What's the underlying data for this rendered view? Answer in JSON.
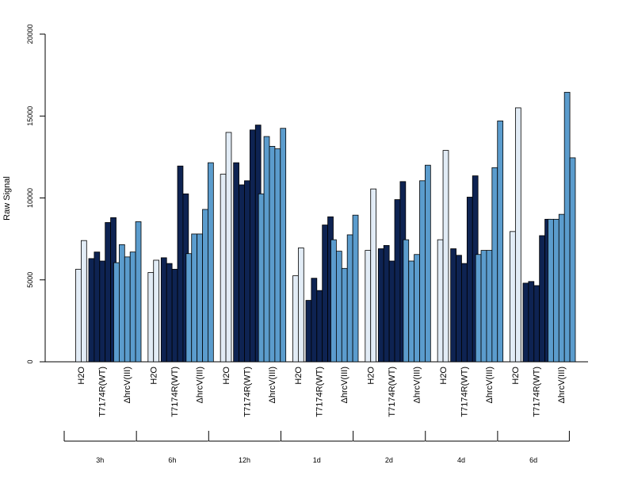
{
  "chart_data": {
    "type": "bar",
    "ylabel": "Raw Signal",
    "ylim": [
      0,
      20000
    ],
    "yticks": [
      0,
      5000,
      10000,
      15000,
      20000
    ],
    "group_labels": [
      "H2O",
      "T7174R(WT)",
      "ΔhrcV(III)"
    ],
    "colors": {
      "H2O": "#e2ecf6",
      "T7174R(WT)": "#0e2352",
      "ΔhrcV(III)": "#5b9ccd"
    },
    "timepoints": [
      {
        "label": "3h",
        "H2O": [
          5650,
          7400
        ],
        "T7174R(WT)": [
          6300,
          6700,
          6150,
          8500,
          8800
        ],
        "ΔhrcV(III)": [
          6050,
          7150,
          6400,
          6700,
          8550
        ]
      },
      {
        "label": "6h",
        "H2O": [
          5450,
          6200
        ],
        "T7174R(WT)": [
          6350,
          6000,
          5650,
          11950,
          10250
        ],
        "ΔhrcV(III)": [
          6600,
          7800,
          7800,
          9300,
          12150
        ]
      },
      {
        "label": "12h",
        "H2O": [
          11450,
          14000
        ],
        "T7174R(WT)": [
          12150,
          10800,
          11050,
          14150,
          14450
        ],
        "ΔhrcV(III)": [
          10250,
          13750,
          13150,
          13000,
          14250
        ]
      },
      {
        "label": "1d",
        "H2O": [
          5250,
          6950
        ],
        "T7174R(WT)": [
          3750,
          5100,
          4350,
          8350,
          8850
        ],
        "ΔhrcV(III)": [
          7450,
          6750,
          5700,
          7750,
          8950
        ]
      },
      {
        "label": "2d",
        "H2O": [
          6800,
          10550
        ],
        "T7174R(WT)": [
          6900,
          7100,
          6150,
          9900,
          11000
        ],
        "ΔhrcV(III)": [
          7450,
          6150,
          6550,
          11050,
          12000
        ]
      },
      {
        "label": "4d",
        "H2O": [
          7450,
          12900
        ],
        "T7174R(WT)": [
          6900,
          6500,
          6000,
          10050,
          11350
        ],
        "ΔhrcV(III)": [
          6550,
          6800,
          6800,
          11850,
          14700
        ]
      },
      {
        "label": "6d",
        "H2O": [
          7950,
          15500
        ],
        "T7174R(WT)": [
          4800,
          4900,
          4650,
          7700,
          8700
        ],
        "ΔhrcV(III)": [
          8700,
          8700,
          9000,
          16450,
          12450
        ]
      }
    ]
  }
}
